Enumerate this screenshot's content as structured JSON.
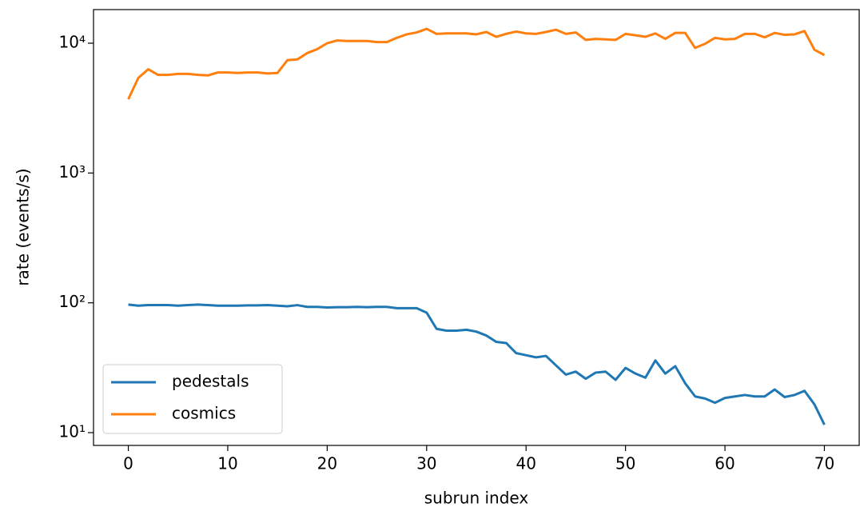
{
  "chart_data": {
    "type": "line",
    "x_label": "subrun index",
    "y_label": "rate (events/s)",
    "x": [
      0,
      1,
      2,
      3,
      4,
      5,
      6,
      7,
      8,
      9,
      10,
      11,
      12,
      13,
      14,
      15,
      16,
      17,
      18,
      19,
      20,
      21,
      22,
      23,
      24,
      25,
      26,
      27,
      28,
      29,
      30,
      31,
      32,
      33,
      34,
      35,
      36,
      37,
      38,
      39,
      40,
      41,
      42,
      43,
      44,
      45,
      46,
      47,
      48,
      49,
      50,
      51,
      52,
      53,
      54,
      55,
      56,
      57,
      58,
      59,
      60,
      61,
      62,
      63,
      64,
      65,
      66,
      67,
      68,
      69,
      70
    ],
    "series": [
      {
        "name": "pedestals",
        "color": "#1f77b4",
        "values": [
          97,
          95,
          96,
          96,
          96,
          95,
          96,
          97,
          96,
          95,
          95,
          95,
          95.5,
          95.5,
          96,
          95,
          94,
          96,
          93,
          93,
          92,
          92.5,
          92.5,
          93,
          92.5,
          93,
          93,
          91,
          91,
          91,
          84,
          63,
          61,
          61,
          62,
          60,
          56,
          50,
          49,
          41,
          39.5,
          38,
          39,
          33,
          28,
          29.5,
          26,
          29,
          29.5,
          25.5,
          31.5,
          28.5,
          26.5,
          36,
          28.5,
          32.5,
          24,
          19,
          18.3,
          17,
          18.5,
          19,
          19.5,
          19,
          19,
          21.5,
          18.8,
          19.5,
          21,
          16.5,
          11.5
        ]
      },
      {
        "name": "cosmics",
        "color": "#ff7f0e",
        "values": [
          3700,
          5400,
          6300,
          5700,
          5700,
          5800,
          5800,
          5700,
          5650,
          5950,
          5950,
          5900,
          5950,
          5950,
          5850,
          5900,
          7400,
          7500,
          8400,
          9000,
          10000,
          10500,
          10400,
          10400,
          10400,
          10200,
          10200,
          11000,
          11700,
          12100,
          12900,
          11800,
          11900,
          11900,
          11900,
          11700,
          12200,
          11200,
          11800,
          12300,
          11900,
          11800,
          12200,
          12700,
          11800,
          12100,
          10600,
          10800,
          10700,
          10600,
          11800,
          11500,
          11200,
          11900,
          10800,
          12000,
          12000,
          9200,
          9900,
          11000,
          10700,
          10800,
          11800,
          11800,
          11100,
          12000,
          11600,
          11700,
          12400,
          8900,
          8100
        ]
      }
    ],
    "xlim": [
      -3.5,
      73.5
    ],
    "xticks": [
      0,
      10,
      20,
      30,
      40,
      50,
      60,
      70
    ],
    "ylim": [
      7.97,
      18150
    ],
    "y_scale": "log",
    "yticks": [
      {
        "value": 10,
        "label": "10¹"
      },
      {
        "value": 100,
        "label": "10²"
      },
      {
        "value": 1000,
        "label": "10³"
      },
      {
        "value": 10000,
        "label": "10⁴"
      }
    ],
    "legend_position": "lower left"
  }
}
